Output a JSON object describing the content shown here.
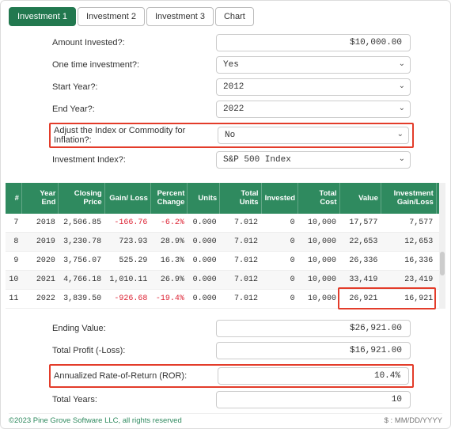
{
  "tabs": [
    "Investment 1",
    "Investment 2",
    "Investment 3",
    "Chart"
  ],
  "active_tab": 0,
  "form": {
    "amount_label": "Amount Invested?:",
    "amount_value": "$10,000.00",
    "onetime_label": "One time investment?:",
    "onetime_value": "Yes",
    "start_label": "Start Year?:",
    "start_value": "2012",
    "end_label": "End Year?:",
    "end_value": "2022",
    "inflation_label": "Adjust the Index or Commodity for Inflation?:",
    "inflation_value": "No",
    "index_label": "Investment Index?:",
    "index_value": "S&P 500 Index"
  },
  "table": {
    "headers": [
      "#",
      "Year End",
      "Closing Price",
      "Gain/ Loss",
      "Percent Change",
      "Units",
      "Total Units",
      "Invested",
      "Total Cost",
      "Value",
      "Investment Gain/Loss"
    ],
    "rows": [
      {
        "n": "7",
        "ye": "2018",
        "cp": "2,506.85",
        "gl": "-166.76",
        "gl_neg": true,
        "pc": "-6.2%",
        "pc_neg": true,
        "u": "0.000",
        "tu": "7.012",
        "iv": "0",
        "tc": "10,000",
        "v": "17,577",
        "igl": "7,577"
      },
      {
        "n": "8",
        "ye": "2019",
        "cp": "3,230.78",
        "gl": "723.93",
        "gl_neg": false,
        "pc": "28.9%",
        "pc_neg": false,
        "u": "0.000",
        "tu": "7.012",
        "iv": "0",
        "tc": "10,000",
        "v": "22,653",
        "igl": "12,653"
      },
      {
        "n": "9",
        "ye": "2020",
        "cp": "3,756.07",
        "gl": "525.29",
        "gl_neg": false,
        "pc": "16.3%",
        "pc_neg": false,
        "u": "0.000",
        "tu": "7.012",
        "iv": "0",
        "tc": "10,000",
        "v": "26,336",
        "igl": "16,336"
      },
      {
        "n": "10",
        "ye": "2021",
        "cp": "4,766.18",
        "gl": "1,010.11",
        "gl_neg": false,
        "pc": "26.9%",
        "pc_neg": false,
        "u": "0.000",
        "tu": "7.012",
        "iv": "0",
        "tc": "10,000",
        "v": "33,419",
        "igl": "23,419"
      },
      {
        "n": "11",
        "ye": "2022",
        "cp": "3,839.50",
        "gl": "-926.68",
        "gl_neg": true,
        "pc": "-19.4%",
        "pc_neg": true,
        "u": "0.000",
        "tu": "7.012",
        "iv": "0",
        "tc": "10,000",
        "v": "26,921",
        "igl": "16,921"
      }
    ]
  },
  "summary": {
    "ending_label": "Ending Value:",
    "ending_value": "$26,921.00",
    "profit_label": "Total Profit (-Loss):",
    "profit_value": "$16,921.00",
    "ror_label": "Annualized Rate-of-Return (ROR):",
    "ror_value": "10.4%",
    "years_label": "Total Years:",
    "years_value": "10"
  },
  "footer": {
    "left": "©2023 Pine Grove Software LLC, all rights reserved",
    "right": "$ : MM/DD/YYYY"
  },
  "colors": {
    "accent": "#2f8a5f",
    "highlight": "#e33c2a",
    "negative": "#d23"
  }
}
